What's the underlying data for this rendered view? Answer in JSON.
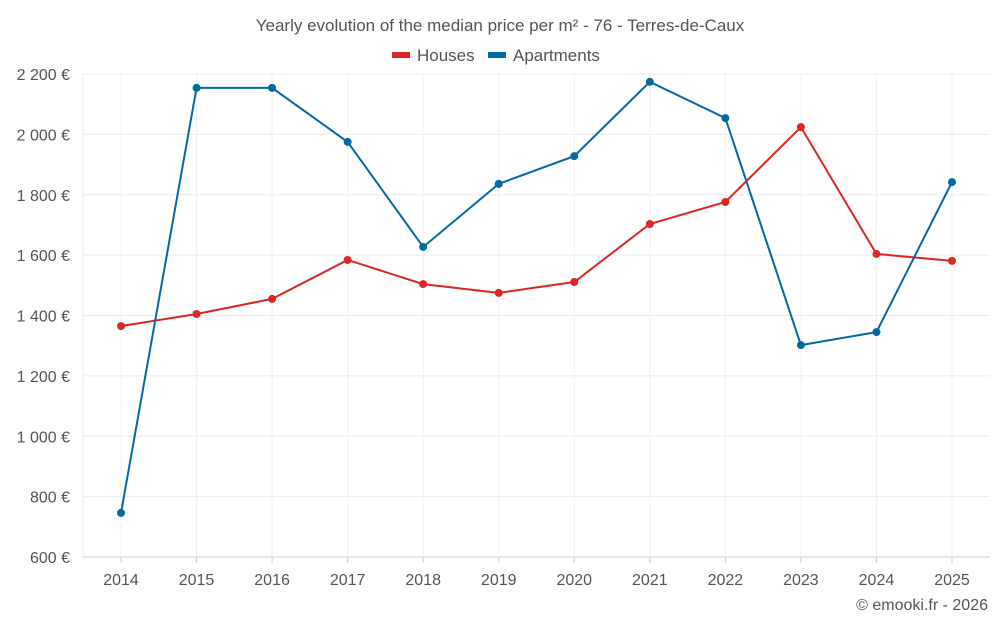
{
  "chart_data": {
    "type": "line",
    "title": "Yearly evolution of the median price per m² - 76 - Terres-de-Caux",
    "xlabel": "",
    "ylabel": "",
    "x": [
      "2014",
      "2015",
      "2016",
      "2017",
      "2018",
      "2019",
      "2020",
      "2021",
      "2022",
      "2023",
      "2024",
      "2025"
    ],
    "ylim": [
      600,
      2200
    ],
    "yticks": [
      600,
      800,
      1000,
      1200,
      1400,
      1600,
      1800,
      2000,
      2200
    ],
    "ytick_labels": [
      "600 €",
      "800 €",
      "1 000 €",
      "1 200 €",
      "1 400 €",
      "1 600 €",
      "1 800 €",
      "2 000 €",
      "2 200 €"
    ],
    "grid": true,
    "legend_position": "top-center",
    "series": [
      {
        "name": "Houses",
        "color": "#dc2626",
        "values": [
          1365,
          1405,
          1455,
          1584,
          1504,
          1475,
          1511,
          1703,
          1776,
          2024,
          1604,
          1581
        ]
      },
      {
        "name": "Apartments",
        "color": "#0369a1",
        "values": [
          746,
          2154,
          2154,
          1975,
          1627,
          1836,
          1928,
          2174,
          2054,
          1302,
          1345,
          1842
        ]
      }
    ],
    "credit": "© emooki.fr - 2026"
  }
}
